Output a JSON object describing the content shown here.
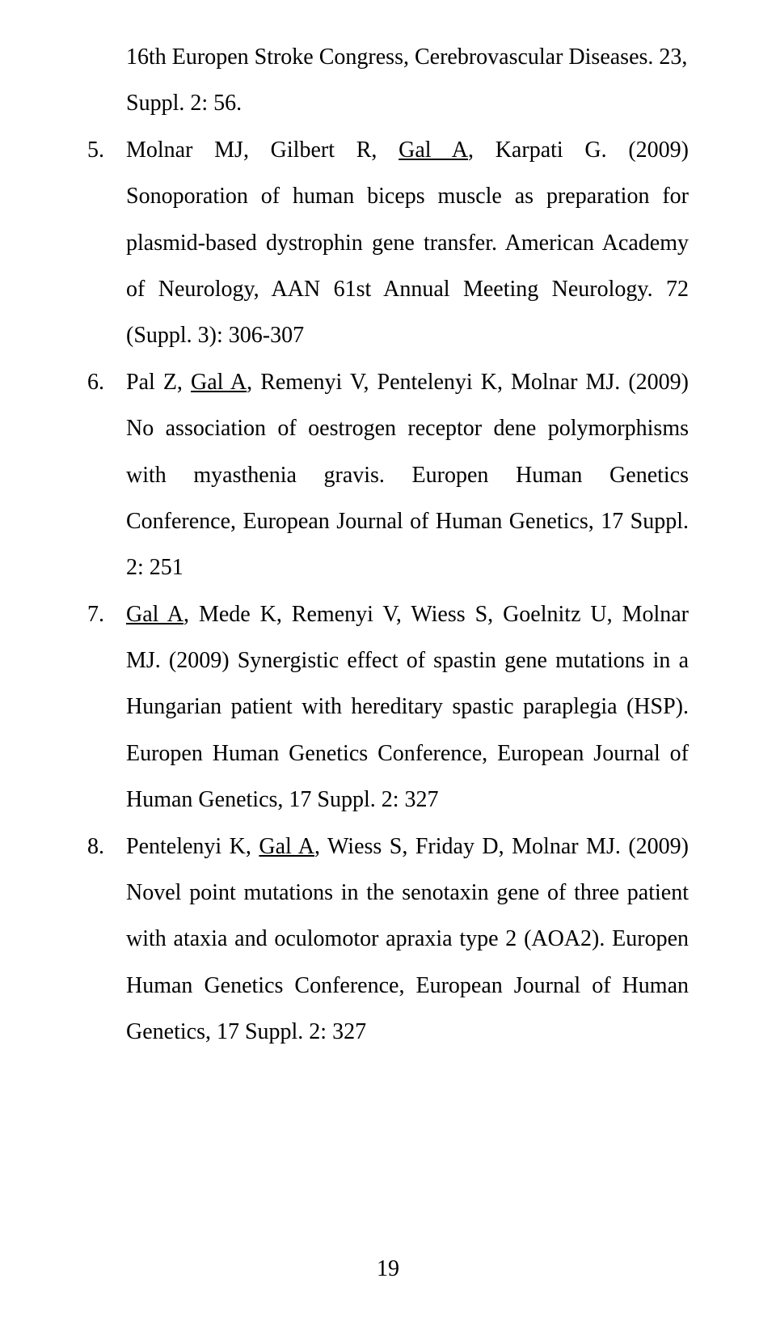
{
  "page": {
    "number": "19",
    "font_family": "Times New Roman",
    "font_size_pt": 14,
    "line_height": 2.05,
    "text_color": "#000000",
    "bg_color": "#ffffff"
  },
  "continuation": {
    "text_a": "16th Europen Stroke Congress, Cerebrovascular Diseases. 23,",
    "text_b": "Suppl. 2: 56."
  },
  "items": [
    {
      "num": "5.",
      "pre": "Molnar MJ, Gilbert R, ",
      "under": "Gal A",
      "post": ", Karpati G. (2009) Sonoporation of human biceps muscle as preparation for plasmid-based dystrophin gene transfer. American Academy of Neurology, AAN 61st Annual Meeting Neurology. 72 (Suppl. 3): 306-307"
    },
    {
      "num": "6.",
      "pre": "Pal Z, ",
      "under": "Gal A",
      "post": ", Remenyi V, Pentelenyi K, Molnar MJ. (2009) No association of oestrogen receptor dene polymorphisms with myasthenia gravis. Europen Human Genetics Conference, European Journal of Human Genetics, 17 Suppl. 2: 251"
    },
    {
      "num": "7.",
      "pre": "",
      "under": "Gal A",
      "post": ", Mede K, Remenyi V, Wiess S, Goelnitz U, Molnar MJ. (2009) Synergistic effect of spastin gene mutations in a Hungarian patient with hereditary spastic paraplegia (HSP). Europen Human Genetics Conference, European Journal of Human Genetics, 17 Suppl. 2: 327"
    },
    {
      "num": "8.",
      "pre": "Pentelenyi K, ",
      "under": "Gal A",
      "post": ", Wiess S, Friday D, Molnar MJ. (2009) Novel point mutations in the senotaxin gene of three patient with ataxia and oculomotor apraxia type 2 (AOA2). Europen Human Genetics Conference, European Journal of Human Genetics, 17 Suppl. 2: 327"
    }
  ]
}
